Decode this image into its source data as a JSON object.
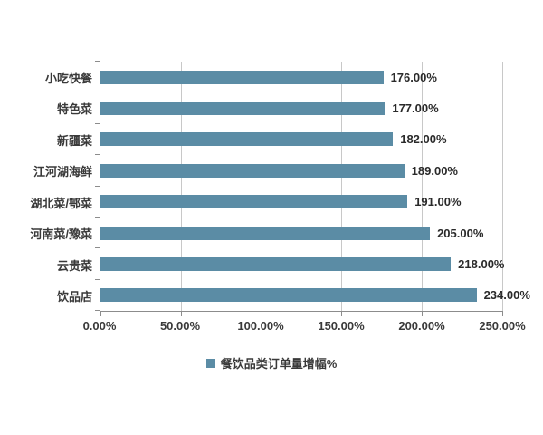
{
  "chart_data": {
    "type": "bar",
    "orientation": "horizontal",
    "title": "",
    "xlabel": "",
    "ylabel": "",
    "categories": [
      "小吃快餐",
      "特色菜",
      "新疆菜",
      "江河湖海鲜",
      "湖北菜/鄂菜",
      "河南菜/豫菜",
      "云贵菜",
      "饮品店"
    ],
    "values": [
      176,
      177,
      182,
      189,
      191,
      205,
      218,
      234
    ],
    "value_labels": [
      "176.00%",
      "177.00%",
      "182.00%",
      "189.00%",
      "191.00%",
      "205.00%",
      "218.00%",
      "234.00%"
    ],
    "x_ticks": [
      "0.00%",
      "50.00%",
      "100.00%",
      "150.00%",
      "200.00%",
      "250.00%"
    ],
    "xlim": [
      0,
      250
    ],
    "grid": "vertical",
    "legend": {
      "position": "bottom",
      "label": "餐饮品类订单量增幅%"
    },
    "colors": {
      "bar": "#5b8ca5",
      "gridline": "#c8c8c8",
      "axis": "#8c8c8c",
      "text": "#3a3a3a",
      "background": "#ffffff"
    }
  }
}
